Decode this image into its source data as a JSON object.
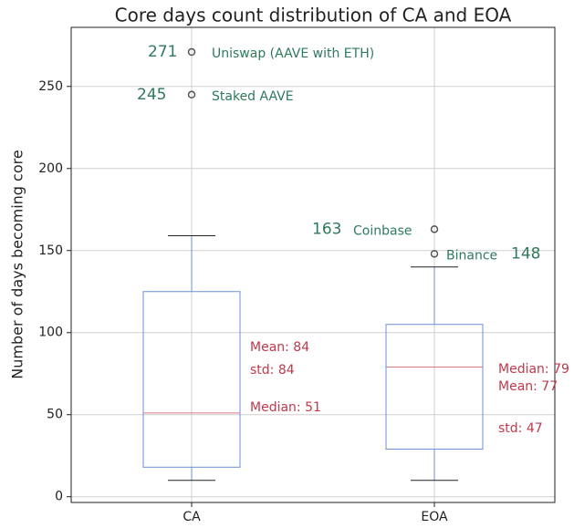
{
  "chart_data": {
    "type": "box",
    "title": "Core days count distribution of CA and EOA",
    "ylabel": "Number of days becoming core",
    "categories": [
      "CA",
      "EOA"
    ],
    "ylim": [
      -3.5,
      286
    ],
    "yticks": [
      0,
      50,
      100,
      150,
      200,
      250
    ],
    "grid": true,
    "box_color": "#6a8fd8",
    "median_color": "#d9777f",
    "whisker_color": "#222222",
    "boxes": [
      {
        "whislo": 10,
        "q1": 18,
        "med": 51,
        "q3": 125,
        "whishi": 159,
        "fliers": [
          271,
          245
        ],
        "flier_names": [
          "Uniswap (AAVE with ETH)",
          "Staked AAVE"
        ],
        "annotations": [
          "Mean: 84",
          "std: 84",
          "Median: 51"
        ]
      },
      {
        "whislo": 10,
        "q1": 29,
        "med": 79,
        "q3": 105,
        "whishi": 140,
        "fliers": [
          163,
          148
        ],
        "flier_names": [
          "Coinbase",
          "Binance"
        ],
        "annotations": [
          "Median: 79",
          "Mean: 77",
          "std: 47"
        ]
      }
    ]
  }
}
